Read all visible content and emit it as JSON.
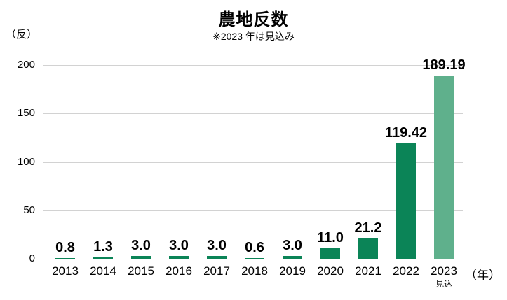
{
  "header": {
    "title": "農地反数",
    "subtitle": "※2023 年は見込み"
  },
  "axes": {
    "y_unit_label": "（反）",
    "x_unit_label": "（年）"
  },
  "colors": {
    "bar": "#0b8457",
    "bar_estimate": "#5fb08c",
    "gridline": "#d2d2d2",
    "axis_line": "#a9a9a9",
    "text": "#000000"
  },
  "chart_data": {
    "type": "bar",
    "title": "農地反数",
    "subtitle": "※2023 年は見込み",
    "xlabel": "（年）",
    "ylabel": "（反）",
    "categories": [
      "2013",
      "2014",
      "2015",
      "2016",
      "2017",
      "2018",
      "2019",
      "2020",
      "2021",
      "2022",
      "2023"
    ],
    "values": [
      0.8,
      1.3,
      3.0,
      3.0,
      3.0,
      0.6,
      3.0,
      11.0,
      21.2,
      119.42,
      189.19
    ],
    "value_labels": [
      "0.8",
      "1.3",
      "3.0",
      "3.0",
      "3.0",
      "0.6",
      "3.0",
      "11.0",
      "21.2",
      "119.42",
      "189.19"
    ],
    "ylim": [
      0,
      200
    ],
    "yticks": [
      0,
      50,
      100,
      150,
      200
    ],
    "grid": true,
    "legend": false,
    "estimate_index": 10,
    "estimate_label": "見込"
  }
}
